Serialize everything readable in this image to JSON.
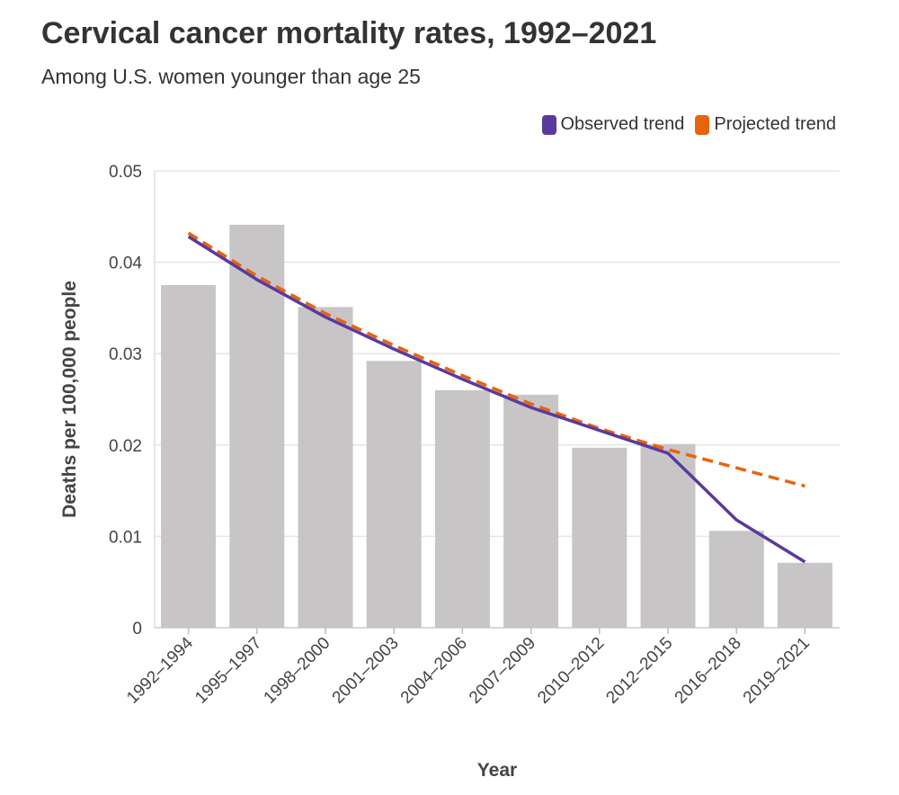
{
  "title": "Cervical cancer mortality rates, 1992–2021",
  "subtitle": "Among U.S. women younger than age 25",
  "chart_data": {
    "type": "bar",
    "title": "Cervical cancer mortality rates, 1992–2021",
    "subtitle": "Among U.S. women younger than age 25",
    "xlabel": "Year",
    "ylabel": "Deaths per 100,000 people",
    "ylim": [
      0,
      0.05
    ],
    "yticks": [
      "0",
      "0.01",
      "0.02",
      "0.03",
      "0.04",
      "0.05"
    ],
    "grid": true,
    "legend_position": "top-right",
    "categories": [
      "1992–1994",
      "1995–1997",
      "1998–2000",
      "2001–2003",
      "2004–2006",
      "2007–2009",
      "2010–2012",
      "2012–2015",
      "2016–2018",
      "2019–2021"
    ],
    "values": [
      0.0375,
      0.0441,
      0.0351,
      0.0292,
      0.026,
      0.0255,
      0.0197,
      0.0201,
      0.0106,
      0.0071
    ],
    "bar_color": "#c8c5c7",
    "series": [
      {
        "name": "Observed trend",
        "type": "line",
        "color": "#5b3a9e",
        "dashed": false,
        "values": [
          0.0428,
          0.0381,
          0.034,
          0.0305,
          0.0272,
          0.0241,
          0.0216,
          0.0191,
          0.0118,
          0.0072
        ]
      },
      {
        "name": "Projected trend",
        "type": "line",
        "color": "#e8640c",
        "dashed": true,
        "values": [
          0.0432,
          0.0385,
          0.0344,
          0.0309,
          0.0276,
          0.0245,
          0.0218,
          0.0195,
          0.0175,
          0.0155
        ]
      }
    ]
  }
}
